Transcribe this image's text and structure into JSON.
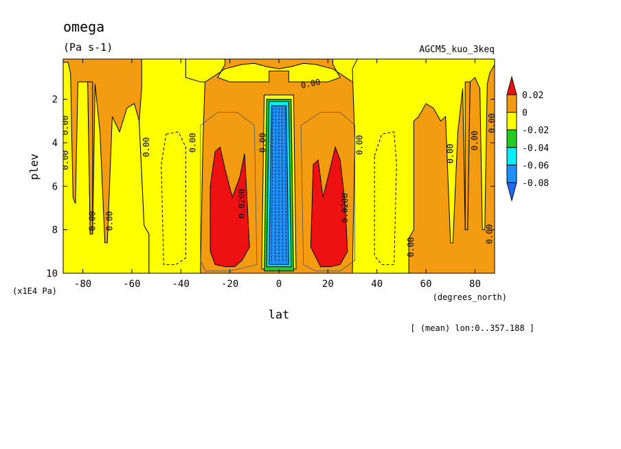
{
  "chart_data": {
    "type": "heatmap",
    "title": "omega",
    "units": "(Pa s-1)",
    "experiment": "AGCM5_kuo_3keq",
    "xlabel": "lat",
    "xunit": "(degrees_north)",
    "ylabel": "plev",
    "yunit": "(x1E4 Pa)",
    "footnote": "[ (mean) lon:0..357.188 ]",
    "xlim": [
      -88,
      88
    ],
    "ylim": [
      10,
      0.15
    ],
    "x_ticks": [
      -80,
      -60,
      -40,
      -20,
      0,
      20,
      40,
      60,
      80
    ],
    "x_tick_labels": [
      "-80",
      "-60",
      "-40",
      "-20",
      "0",
      "20",
      "40",
      "60",
      "80"
    ],
    "y_ticks": [
      2,
      4,
      6,
      8,
      10
    ],
    "y_tick_labels": [
      "2",
      "4",
      "6",
      "8",
      "10"
    ],
    "colorbar": {
      "labels": [
        "0.02",
        "0",
        "-0.02",
        "-0.04",
        "-0.06",
        "-0.08"
      ],
      "bins": [
        {
          "range": [
            0.02,
            1
          ],
          "color": "#ee1111"
        },
        {
          "range": [
            0,
            0.02
          ],
          "color": "#f39c12"
        },
        {
          "range": [
            -0.02,
            0
          ],
          "color": "#ffff00"
        },
        {
          "range": [
            -0.04,
            -0.02
          ],
          "color": "#22cc22"
        },
        {
          "range": [
            -0.06,
            -0.04
          ],
          "color": "#00eeff"
        },
        {
          "range": [
            -0.08,
            -0.06
          ],
          "color": "#1e90ff"
        },
        {
          "range": [
            -1,
            -0.08
          ],
          "color": "#1e6cff"
        }
      ]
    },
    "regions": [
      {
        "level": "0 to 0.02",
        "color": "#f39c12",
        "polygon": [
          [
            -88,
            0.15
          ],
          [
            88,
            0.15
          ],
          [
            88,
            10
          ],
          [
            -88,
            10
          ]
        ]
      },
      {
        "level": "-0.02 to 0",
        "color": "#ffff00",
        "polygon": [
          [
            -88,
            0.3
          ],
          [
            -86,
            0.3
          ],
          [
            -85,
            0.8
          ],
          [
            -84,
            6.5
          ],
          [
            -83,
            6.8
          ],
          [
            -82,
            1.2
          ],
          [
            -78,
            1.2
          ],
          [
            -77,
            8.2
          ],
          [
            -76,
            8.2
          ],
          [
            -75,
            1.3
          ],
          [
            -73,
            3.5
          ],
          [
            -71,
            8.6
          ],
          [
            -70,
            8.6
          ],
          [
            -68,
            2.8
          ],
          [
            -65,
            3.5
          ],
          [
            -62,
            2.4
          ],
          [
            -59,
            2.2
          ],
          [
            -57,
            3.0
          ],
          [
            -55,
            7.8
          ],
          [
            -53,
            8.2
          ],
          [
            -53,
            10
          ],
          [
            -88,
            10
          ]
        ]
      },
      {
        "level": "-0.02 to 0",
        "color": "#ffff00",
        "polygon": [
          [
            -56,
            0.15
          ],
          [
            -28,
            0.15
          ],
          [
            -30,
            0.6
          ],
          [
            -31,
            4.0
          ],
          [
            -32,
            10
          ],
          [
            -53,
            10
          ],
          [
            -53,
            8.2
          ],
          [
            -55,
            7.8
          ],
          [
            -57,
            3.0
          ],
          [
            -56,
            1.5
          ]
        ]
      },
      {
        "level": "-0.02 to 0",
        "color": "#ffff00",
        "polygon": [
          [
            -38,
            0.15
          ],
          [
            -22,
            0.15
          ],
          [
            -22,
            0.4
          ],
          [
            -24,
            0.8
          ],
          [
            -25,
            1.0
          ],
          [
            -20,
            1.2
          ],
          [
            -4,
            1.2
          ],
          [
            -4,
            0.7
          ],
          [
            4,
            0.7
          ],
          [
            4,
            1.2
          ],
          [
            20,
            1.2
          ],
          [
            25,
            1.0
          ],
          [
            24,
            0.8
          ],
          [
            22,
            0.4
          ],
          [
            22,
            0.15
          ],
          [
            38,
            0.15
          ],
          [
            38,
            1.0
          ],
          [
            32,
            1.2
          ],
          [
            30,
            1.2
          ],
          [
            22,
            0.6
          ],
          [
            15,
            0.4
          ],
          [
            10,
            0.35
          ],
          [
            5,
            0.5
          ],
          [
            0,
            0.6
          ],
          [
            -5,
            0.5
          ],
          [
            -10,
            0.35
          ],
          [
            -15,
            0.4
          ],
          [
            -22,
            0.6
          ],
          [
            -30,
            1.2
          ],
          [
            -32,
            1.2
          ],
          [
            -38,
            1.0
          ]
        ]
      },
      {
        "level": "-0.02 to 0",
        "color": "#ffff00",
        "polygon": [
          [
            56,
            0.15
          ],
          [
            88,
            0.15
          ],
          [
            88,
            0.4
          ],
          [
            86,
            0.8
          ],
          [
            85,
            1.3
          ],
          [
            84,
            8.0
          ],
          [
            83,
            8.0
          ],
          [
            82,
            1.5
          ],
          [
            80,
            1.0
          ],
          [
            78,
            1.2
          ],
          [
            77,
            8.0
          ],
          [
            76,
            8.0
          ],
          [
            75,
            1.5
          ],
          [
            73,
            3.5
          ],
          [
            71,
            8.6
          ],
          [
            70,
            8.6
          ],
          [
            68,
            2.8
          ],
          [
            66,
            3.0
          ],
          [
            63,
            2.4
          ],
          [
            60,
            2.2
          ],
          [
            57,
            2.8
          ],
          [
            55,
            3.0
          ],
          [
            55,
            8.0
          ],
          [
            53,
            8.4
          ],
          [
            53,
            10
          ],
          [
            30,
            10
          ],
          [
            31,
            4.0
          ],
          [
            30,
            0.6
          ],
          [
            32,
            0.15
          ]
        ]
      },
      {
        "level": "-0.02 to 0",
        "color": "#ffff00",
        "polygon": [
          [
            -6,
            1.8
          ],
          [
            6,
            1.8
          ],
          [
            7,
            9.8
          ],
          [
            -7,
            9.8
          ]
        ]
      },
      {
        "level": "0 to 0.02",
        "color": "#f39c12",
        "polygon": [
          [
            -78,
            1.2
          ],
          [
            -76,
            1.2
          ],
          [
            -76,
            8.2
          ],
          [
            -77,
            8.2
          ]
        ]
      },
      {
        "level": "0 to 0.02",
        "color": "#f39c12",
        "polygon": [
          [
            76,
            1.2
          ],
          [
            78,
            1.2
          ],
          [
            77,
            8.0
          ],
          [
            76,
            8.0
          ]
        ]
      },
      {
        "level": "0.02 to 1",
        "color": "#ee1111",
        "polygon": [
          [
            -28,
            6.0
          ],
          [
            -26,
            4.4
          ],
          [
            -24,
            4.2
          ],
          [
            -22,
            5.2
          ],
          [
            -19,
            6.5
          ],
          [
            -16,
            5.6
          ],
          [
            -14,
            4.5
          ],
          [
            -13,
            6.6
          ],
          [
            -12,
            8.8
          ],
          [
            -15,
            9.4
          ],
          [
            -18,
            9.7
          ],
          [
            -22,
            9.7
          ],
          [
            -26,
            9.6
          ],
          [
            -28,
            9.0
          ]
        ]
      },
      {
        "level": "0.02 to 1",
        "color": "#ee1111",
        "polygon": [
          [
            13,
            8.8
          ],
          [
            14,
            5.0
          ],
          [
            16,
            4.8
          ],
          [
            18,
            6.5
          ],
          [
            20,
            5.6
          ],
          [
            23,
            4.2
          ],
          [
            25,
            4.8
          ],
          [
            27,
            6.8
          ],
          [
            28,
            9.0
          ],
          [
            25,
            9.6
          ],
          [
            21,
            9.7
          ],
          [
            17,
            9.7
          ]
        ]
      },
      {
        "level": "-0.02 to -0.04",
        "color": "#22cc22",
        "polygon": [
          [
            -5,
            2.0
          ],
          [
            5,
            2.0
          ],
          [
            6,
            9.9
          ],
          [
            -6,
            9.9
          ]
        ]
      },
      {
        "level": "-0.04 to -0.06",
        "color": "#00eeff",
        "polygon": [
          [
            -4,
            2.1
          ],
          [
            4,
            2.1
          ],
          [
            5,
            9.7
          ],
          [
            -5,
            9.7
          ]
        ]
      },
      {
        "level": "-0.06 to -0.08",
        "color": "#1e90ff",
        "polygon": [
          [
            -3,
            2.3
          ],
          [
            3,
            2.3
          ],
          [
            4,
            9.6
          ],
          [
            -4,
            9.6
          ]
        ]
      }
    ],
    "contour_labels": [
      {
        "text": "0.00",
        "x": -88,
        "y": 3.2,
        "rotate": -90
      },
      {
        "text": "0.00",
        "x": -92,
        "y": 4.8,
        "rotate": -90
      },
      {
        "text": "0.00",
        "x": -76,
        "y": 7.6,
        "rotate": -90
      },
      {
        "text": "0.00",
        "x": -69,
        "y": 7.6,
        "rotate": -90
      },
      {
        "text": "0.00",
        "x": -54,
        "y": 4.2,
        "rotate": -90
      },
      {
        "text": "0.00",
        "x": -35,
        "y": 4.0,
        "rotate": -90
      },
      {
        "text": "0.0200",
        "x": -15,
        "y": 6.8,
        "rotate": -90
      },
      {
        "text": "0.00",
        "x": -6.5,
        "y": 4.0,
        "rotate": -90
      },
      {
        "text": "0.00",
        "x": 13,
        "y": 1.3,
        "rotate": -12
      },
      {
        "text": "0.00",
        "x": 33,
        "y": 4.1,
        "rotate": -90
      },
      {
        "text": "0.0200",
        "x": 27,
        "y": 7.0,
        "rotate": -90
      },
      {
        "text": "0.00",
        "x": 54,
        "y": 8.8,
        "rotate": -90
      },
      {
        "text": "0.00",
        "x": 70,
        "y": 4.5,
        "rotate": -90
      },
      {
        "text": "0.00",
        "x": 80,
        "y": 3.9,
        "rotate": -90
      },
      {
        "text": "0.00",
        "x": 90,
        "y": 3.1,
        "rotate": -90
      },
      {
        "text": "0.00",
        "x": 86,
        "y": 8.2,
        "rotate": -90
      }
    ]
  }
}
